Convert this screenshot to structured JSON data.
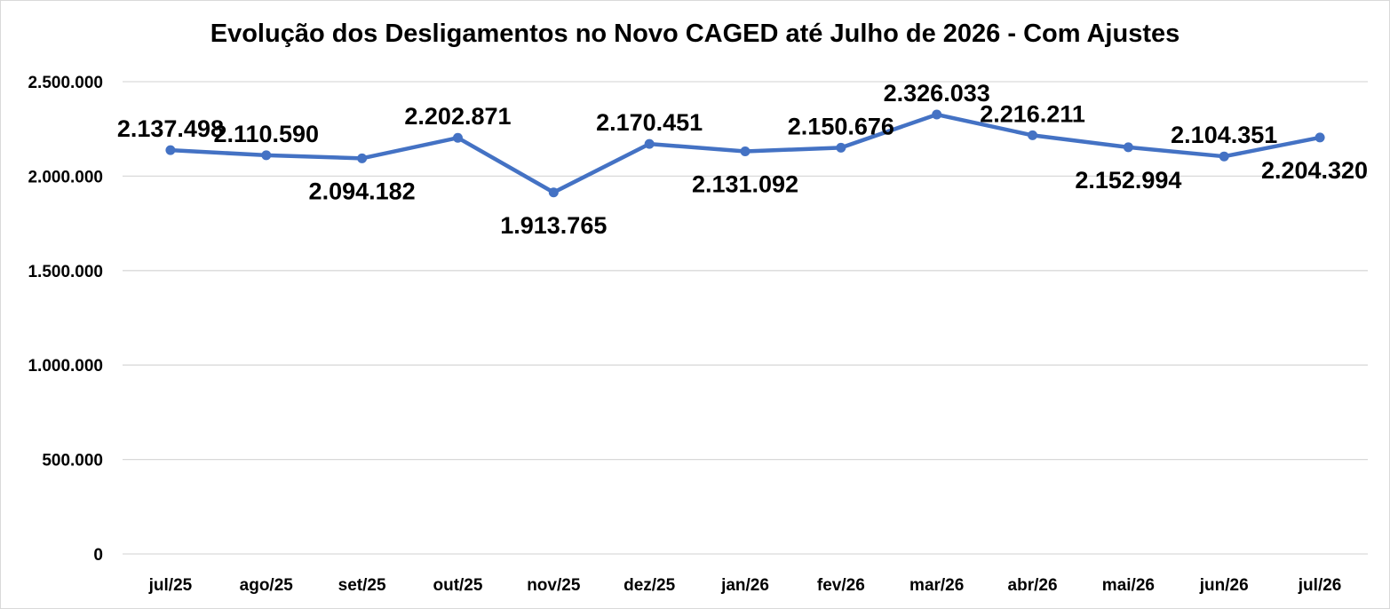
{
  "chart_data": {
    "type": "line",
    "title": "Evolução dos Desligamentos no Novo CAGED até Julho de 2026 - Com Ajustes",
    "xlabel": "",
    "ylabel": "",
    "ylim": [
      0,
      2500000
    ],
    "yticks": [
      {
        "value": 0,
        "label": "0"
      },
      {
        "value": 500000,
        "label": "500.000"
      },
      {
        "value": 1000000,
        "label": "1.000.000"
      },
      {
        "value": 1500000,
        "label": "1.500.000"
      },
      {
        "value": 2000000,
        "label": "2.000.000"
      },
      {
        "value": 2500000,
        "label": "2.500.000"
      }
    ],
    "grid": true,
    "legend": "none",
    "color": "#4472c4",
    "categories": [
      "jul/25",
      "ago/25",
      "set/25",
      "out/25",
      "nov/25",
      "dez/25",
      "jan/26",
      "fev/26",
      "mar/26",
      "abr/26",
      "mai/26",
      "jun/26",
      "jul/26"
    ],
    "values": [
      2137498,
      2110590,
      2094182,
      2202871,
      1913765,
      2170451,
      2131092,
      2150676,
      2326033,
      2216211,
      2152994,
      2104351,
      2204320
    ],
    "data_labels": [
      "2.137.498",
      "2.110.590",
      "2.094.182",
      "2.202.871",
      "1.913.765",
      "2.170.451",
      "2.131.092",
      "2.150.676",
      "2.326.033",
      "2.216.211",
      "2.152.994",
      "2.104.351",
      "2.204.320"
    ],
    "label_positions": [
      "above",
      "above",
      "below",
      "above",
      "below",
      "above",
      "below",
      "above",
      "above",
      "above",
      "below",
      "above",
      "below"
    ]
  }
}
